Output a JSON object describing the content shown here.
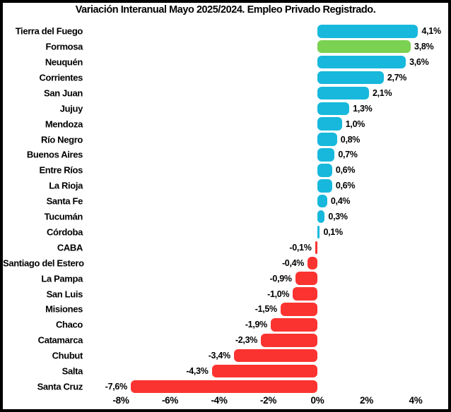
{
  "colors": {
    "positive_bar": "#17b8dc",
    "highlight_bar": "#7bd152",
    "negative_bar": "#fb3330",
    "frame_border": "#000000",
    "background": "#ffffff",
    "text": "#000000"
  },
  "chart_data": {
    "type": "bar",
    "orientation": "horizontal",
    "title": "Variación Interanual Mayo 2025/2024. Empleo Privado Registrado.",
    "categories": [
      "Tierra del Fuego",
      "Formosa",
      "Neuquén",
      "Corrientes",
      "San Juan",
      "Jujuy",
      "Mendoza",
      "Río Negro",
      "Buenos Aires",
      "Entre Ríos",
      "La Rioja",
      "Santa Fe",
      "Tucumán",
      "Córdoba",
      "CABA",
      "Santiago del Estero",
      "La Pampa",
      "San Luis",
      "Misiones",
      "Chaco",
      "Catamarca",
      "Chubut",
      "Salta",
      "Santa Cruz"
    ],
    "values": [
      4.1,
      3.8,
      3.6,
      2.7,
      2.1,
      1.3,
      1.0,
      0.8,
      0.7,
      0.6,
      0.6,
      0.4,
      0.3,
      0.1,
      -0.1,
      -0.4,
      -0.9,
      -1.0,
      -1.5,
      -1.9,
      -2.3,
      -3.4,
      -4.3,
      -7.6
    ],
    "value_labels": [
      "4,1%",
      "3,8%",
      "3,6%",
      "2,7%",
      "2,1%",
      "1,3%",
      "1,0%",
      "0,8%",
      "0,7%",
      "0,6%",
      "0,6%",
      "0,4%",
      "0,3%",
      "0,1%",
      "-0,1%",
      "-0,4%",
      "-0,9%",
      "-1,0%",
      "-1,5%",
      "-1,9%",
      "-2,3%",
      "-3,4%",
      "-4,3%",
      "-7,6%"
    ],
    "bar_colors": [
      "#17b8dc",
      "#7bd152",
      "#17b8dc",
      "#17b8dc",
      "#17b8dc",
      "#17b8dc",
      "#17b8dc",
      "#17b8dc",
      "#17b8dc",
      "#17b8dc",
      "#17b8dc",
      "#17b8dc",
      "#17b8dc",
      "#17b8dc",
      "#fb3330",
      "#fb3330",
      "#fb3330",
      "#fb3330",
      "#fb3330",
      "#fb3330",
      "#fb3330",
      "#fb3330",
      "#fb3330",
      "#fb3330"
    ],
    "x_ticks": [
      -8,
      -6,
      -4,
      -2,
      0,
      2,
      4
    ],
    "x_tick_labels": [
      "-8%",
      "-6%",
      "-4%",
      "-2%",
      "0%",
      "2%",
      "4%"
    ],
    "xlim": [
      -9.3,
      5.5
    ],
    "grid": false,
    "legend": null,
    "value_label_position": "outside-end",
    "ylabel": "",
    "xlabel": ""
  }
}
